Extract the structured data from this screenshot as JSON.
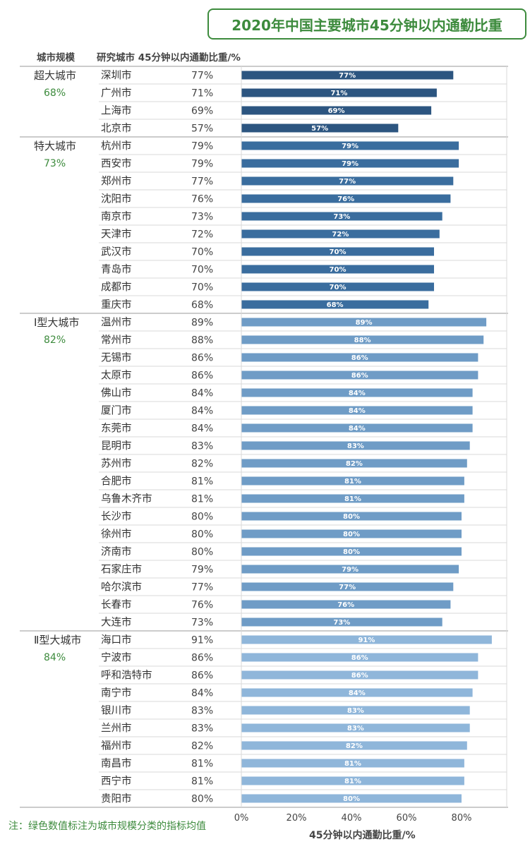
{
  "chart_data": {
    "type": "bar",
    "title": "2020年中国主要城市45分钟以内通勤比重",
    "column_headers": {
      "group": "城市规模",
      "city": "研究城市 45分钟以内通勤比重/%"
    },
    "xlabel": "45分钟以内通勤比重/%",
    "xlim": [
      0,
      100
    ],
    "x_ticks": [
      "0%",
      "20%",
      "40%",
      "60%",
      "80%"
    ],
    "note": "注：绿色数值标注为城市规模分类的指标均值",
    "grid": false,
    "groups": [
      {
        "name": "超大城市",
        "average": "68%",
        "color": "#2c5580",
        "cities": [
          {
            "name": "深圳市",
            "value": 77
          },
          {
            "name": "广州市",
            "value": 71
          },
          {
            "name": "上海市",
            "value": 69
          },
          {
            "name": "北京市",
            "value": 57
          }
        ]
      },
      {
        "name": "特大城市",
        "average": "73%",
        "color": "#3a6d9e",
        "cities": [
          {
            "name": "杭州市",
            "value": 79
          },
          {
            "name": "西安市",
            "value": 79
          },
          {
            "name": "郑州市",
            "value": 77
          },
          {
            "name": "沈阳市",
            "value": 76
          },
          {
            "name": "南京市",
            "value": 73
          },
          {
            "name": "天津市",
            "value": 72
          },
          {
            "name": "武汉市",
            "value": 70
          },
          {
            "name": "青岛市",
            "value": 70
          },
          {
            "name": "成都市",
            "value": 70
          },
          {
            "name": "重庆市",
            "value": 68
          }
        ]
      },
      {
        "name": "Ⅰ型大城市",
        "average": "82%",
        "color": "#6f9cc6",
        "cities": [
          {
            "name": "温州市",
            "value": 89
          },
          {
            "name": "常州市",
            "value": 88
          },
          {
            "name": "无锡市",
            "value": 86
          },
          {
            "name": "太原市",
            "value": 86
          },
          {
            "name": "佛山市",
            "value": 84
          },
          {
            "name": "厦门市",
            "value": 84
          },
          {
            "name": "东莞市",
            "value": 84
          },
          {
            "name": "昆明市",
            "value": 83
          },
          {
            "name": "苏州市",
            "value": 82
          },
          {
            "name": "合肥市",
            "value": 81
          },
          {
            "name": "乌鲁木齐市",
            "value": 81
          },
          {
            "name": "长沙市",
            "value": 80
          },
          {
            "name": "徐州市",
            "value": 80
          },
          {
            "name": "济南市",
            "value": 80
          },
          {
            "name": "石家庄市",
            "value": 79
          },
          {
            "name": "哈尔滨市",
            "value": 77
          },
          {
            "name": "长春市",
            "value": 76
          },
          {
            "name": "大连市",
            "value": 73
          }
        ]
      },
      {
        "name": "Ⅱ型大城市",
        "average": "84%",
        "color": "#8fb6da",
        "cities": [
          {
            "name": "海口市",
            "value": 91
          },
          {
            "name": "宁波市",
            "value": 86
          },
          {
            "name": "呼和浩特市",
            "value": 86
          },
          {
            "name": "南宁市",
            "value": 84
          },
          {
            "name": "银川市",
            "value": 83
          },
          {
            "name": "兰州市",
            "value": 83
          },
          {
            "name": "福州市",
            "value": 82
          },
          {
            "name": "南昌市",
            "value": 81
          },
          {
            "name": "西宁市",
            "value": 81
          },
          {
            "name": "贵阳市",
            "value": 80
          }
        ]
      }
    ]
  }
}
